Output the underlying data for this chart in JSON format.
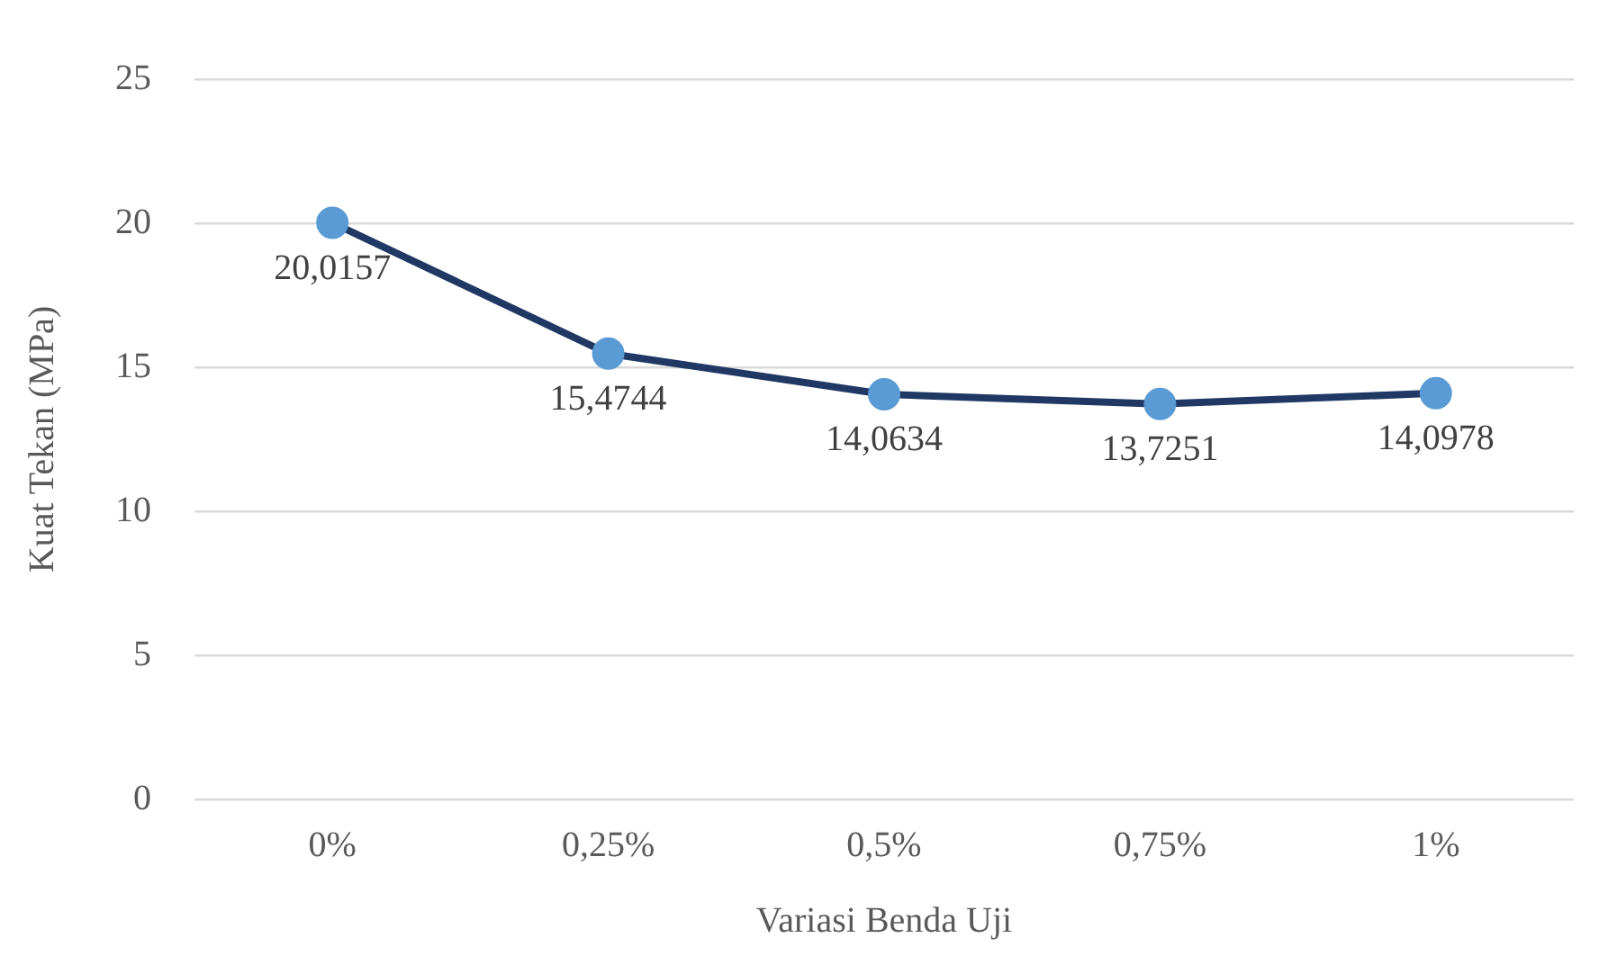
{
  "chart_data": {
    "type": "line",
    "xlabel": "Variasi Benda Uji",
    "ylabel": "Kuat Tekan (MPa)",
    "categories": [
      "0%",
      "0,25%",
      "0,5%",
      "0,75%",
      "1%"
    ],
    "series": [
      {
        "color": "#203864",
        "values": [
          20.0157,
          15.4744,
          14.0634,
          13.7251,
          14.0978
        ],
        "value_labels": [
          "20,0157",
          "15,4744",
          "14,0634",
          "13,7251",
          "14,0978"
        ],
        "colors": [
          "#5b9bd5",
          "#5b9bd5",
          "#5b9bd5",
          "#5b9bd5",
          "#5b9bd5"
        ]
      }
    ],
    "marker": "circle",
    "line_style": "solid",
    "ylim": [
      0,
      25
    ],
    "yticks": [
      0,
      5,
      10,
      15,
      20,
      25
    ],
    "grid": "y",
    "legend": false
  }
}
